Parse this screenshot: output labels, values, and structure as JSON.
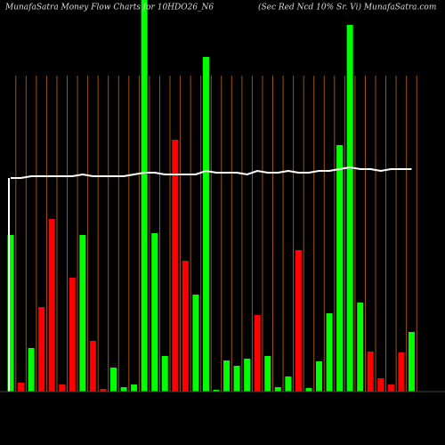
{
  "chart_data": {
    "type": "bar",
    "title": "MunafaSatra  Money Flow  Charts for 10HDO26_N6",
    "subtitle": "(Sec Red Ncd 10% Sr. Vi) MunafaSatra.com",
    "ylim": [
      0,
      440
    ],
    "grid": true,
    "grid_color": "#a0520a",
    "series": [
      {
        "colors": [
          "#00ff00",
          "#ff0000",
          "#00ff00",
          "#ff0000",
          "#ff0000",
          "#ff0000",
          "#ff0000",
          "#00ff00",
          "#ff0000",
          "#ff0000",
          "#00ff00",
          "#00ff00",
          "#00ff00",
          "#00ff00",
          "#00ff00",
          "#00ff00",
          "#ff0000",
          "#ff0000",
          "#00ff00",
          "#00ff00",
          "#00ff00",
          "#00ff00",
          "#00ff00",
          "#00ff00",
          "#ff0000",
          "#00ff00",
          "#00ff00",
          "#00ff00",
          "#ff0000",
          "#00ff00",
          "#00ff00",
          "#00ff00",
          "#00ff00",
          "#00ff00",
          "#00ff00",
          "#ff0000",
          "#ff0000",
          "#ff0000",
          "#ff0000",
          "#00ff00"
        ],
        "values": [
          176,
          10,
          49,
          95,
          194,
          8,
          128,
          176,
          57,
          3,
          27,
          5,
          8,
          440,
          178,
          40,
          283,
          147,
          109,
          376,
          2,
          35,
          29,
          37,
          86,
          40,
          5,
          17,
          159,
          4,
          34,
          88,
          277,
          412,
          100,
          45,
          15,
          8,
          44,
          67
        ]
      },
      {
        "type": "line",
        "color": "#ffffff",
        "values": [
          240,
          240,
          242,
          242,
          242,
          242,
          242,
          244,
          242,
          242,
          242,
          242,
          244,
          246,
          246,
          244,
          244,
          244,
          244,
          248,
          246,
          246,
          246,
          244,
          248,
          246,
          246,
          248,
          246,
          246,
          248,
          248,
          250,
          252,
          250,
          250,
          248,
          250,
          250,
          250
        ]
      }
    ]
  }
}
